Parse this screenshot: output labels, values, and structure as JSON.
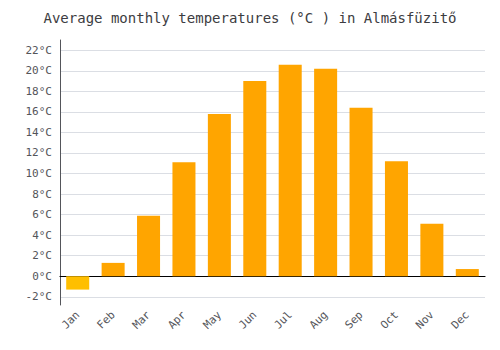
{
  "chart_data": {
    "type": "bar",
    "title": "Average monthly temperatures (°C ) in Almásfüzitő",
    "categories": [
      "Jan",
      "Feb",
      "Mar",
      "Apr",
      "May",
      "Jun",
      "Jul",
      "Aug",
      "Sep",
      "Oct",
      "Nov",
      "Dec"
    ],
    "values": [
      -1.3,
      1.3,
      5.9,
      11.1,
      15.8,
      19.0,
      20.6,
      20.2,
      16.4,
      11.2,
      5.1,
      0.7
    ],
    "colors": [
      "#FFBF00",
      "#FFA500",
      "#FFA500",
      "#FFA500",
      "#FFA500",
      "#FFA500",
      "#FFA500",
      "#FFA500",
      "#FFA500",
      "#FFA500",
      "#FFA500",
      "#FFA500"
    ],
    "ylim": [
      -2.8,
      23.0
    ],
    "yticks": [
      {
        "value": -2,
        "label": "-2°C"
      },
      {
        "value": 0,
        "label": "0°C"
      },
      {
        "value": 2,
        "label": "2°C"
      },
      {
        "value": 4,
        "label": "4°C"
      },
      {
        "value": 6,
        "label": "6°C"
      },
      {
        "value": 8,
        "label": "8°C"
      },
      {
        "value": 10,
        "label": "10°C"
      },
      {
        "value": 12,
        "label": "12°C"
      },
      {
        "value": 14,
        "label": "14°C"
      },
      {
        "value": 16,
        "label": "16°C"
      },
      {
        "value": 18,
        "label": "18°C"
      },
      {
        "value": 20,
        "label": "20°C"
      },
      {
        "value": 22,
        "label": "22°C"
      }
    ],
    "grid": true
  }
}
